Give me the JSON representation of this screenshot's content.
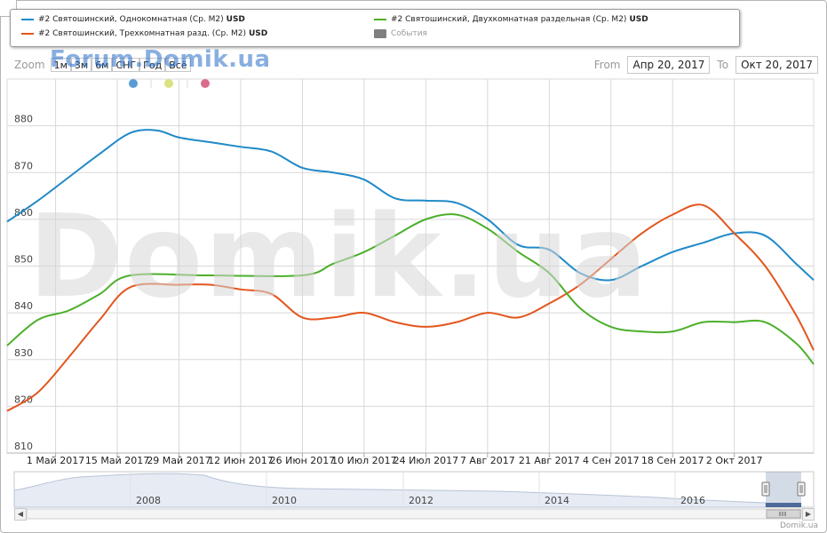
{
  "legend": {
    "items": [
      {
        "label": "#2 Святошинский, Однокомнатная (Ср. М2)",
        "unit": "USD",
        "color": "#1f8ac8"
      },
      {
        "label": "#2 Святошинский, Трехкомнатная разд. (Ср. М2)",
        "unit": "USD",
        "color": "#e2561e"
      },
      {
        "label": "#2 Святошинский, Двухкомнатная раздельная (Ср. М2)",
        "unit": "USD",
        "color": "#4caf2a"
      }
    ],
    "events_label": "События"
  },
  "zoom": {
    "label": "Zoom",
    "buttons": [
      "1м",
      "3м",
      "6м",
      "СНГ",
      "Год",
      "Всё"
    ]
  },
  "range": {
    "from_label": "From",
    "from_value": "Апр 20, 2017",
    "to_label": "To",
    "to_value": "Окт 20, 2017"
  },
  "watermarks": {
    "top": "Forum.Domik.ua",
    "big": "Domik.ua"
  },
  "source": "Domik.ua",
  "event_markers": [
    {
      "color": "#5b9bd5"
    },
    {
      "color": "#d9e27f"
    },
    {
      "color": "#db6c8c"
    }
  ],
  "navigator": {
    "year_labels": [
      "2008",
      "2010",
      "2012",
      "2014",
      "2016"
    ]
  },
  "chart_data": {
    "type": "line",
    "x_unit": "date",
    "ylim": [
      810,
      890
    ],
    "y_ticks": [
      810,
      820,
      830,
      840,
      850,
      860,
      870,
      880
    ],
    "x_ticks": [
      "1 Май 2017",
      "15 Май 2017",
      "29 Май 2017",
      "12 Июн 2017",
      "26 Июн 2017",
      "10 Июл 2017",
      "24 Июл 2017",
      "7 Авг 2017",
      "21 Авг 2017",
      "4 Сен 2017",
      "18 Сен 2017",
      "2 Окт 2017"
    ],
    "x_tick_dates": [
      "2017-05-01",
      "2017-05-15",
      "2017-05-29",
      "2017-06-12",
      "2017-06-26",
      "2017-07-10",
      "2017-07-24",
      "2017-08-07",
      "2017-08-21",
      "2017-09-04",
      "2017-09-18",
      "2017-10-02"
    ],
    "xlim": [
      "2017-04-20",
      "2017-10-20"
    ],
    "grid": true,
    "series": [
      {
        "name": "#2 Святошинский, Однокомнатная (Ср. М2)",
        "color": "#1f8ac8",
        "points": [
          [
            "2017-04-20",
            859.5
          ],
          [
            "2017-04-27",
            864
          ],
          [
            "2017-05-04",
            869
          ],
          [
            "2017-05-11",
            874
          ],
          [
            "2017-05-18",
            878.5
          ],
          [
            "2017-05-24",
            879
          ],
          [
            "2017-05-29",
            877.5
          ],
          [
            "2017-06-05",
            876.5
          ],
          [
            "2017-06-12",
            875.5
          ],
          [
            "2017-06-19",
            874.5
          ],
          [
            "2017-06-26",
            871
          ],
          [
            "2017-07-03",
            870
          ],
          [
            "2017-07-10",
            868.5
          ],
          [
            "2017-07-17",
            864.5
          ],
          [
            "2017-07-24",
            864
          ],
          [
            "2017-07-31",
            863.5
          ],
          [
            "2017-08-07",
            860
          ],
          [
            "2017-08-14",
            854.5
          ],
          [
            "2017-08-21",
            853.5
          ],
          [
            "2017-08-28",
            848.5
          ],
          [
            "2017-09-04",
            847
          ],
          [
            "2017-09-11",
            850
          ],
          [
            "2017-09-18",
            853
          ],
          [
            "2017-09-25",
            855
          ],
          [
            "2017-10-02",
            857
          ],
          [
            "2017-10-09",
            856.5
          ],
          [
            "2017-10-16",
            850.5
          ],
          [
            "2017-10-20",
            847
          ]
        ]
      },
      {
        "name": "#2 Святошинский, Трехкомнатная разд. (Ср. М2)",
        "color": "#e2561e",
        "points": [
          [
            "2017-04-20",
            819
          ],
          [
            "2017-04-27",
            823
          ],
          [
            "2017-05-04",
            830.5
          ],
          [
            "2017-05-11",
            838.5
          ],
          [
            "2017-05-18",
            845.5
          ],
          [
            "2017-05-29",
            846
          ],
          [
            "2017-06-05",
            846
          ],
          [
            "2017-06-12",
            845
          ],
          [
            "2017-06-19",
            844
          ],
          [
            "2017-06-26",
            839
          ],
          [
            "2017-07-03",
            839
          ],
          [
            "2017-07-10",
            840
          ],
          [
            "2017-07-17",
            838
          ],
          [
            "2017-07-24",
            837
          ],
          [
            "2017-07-31",
            838
          ],
          [
            "2017-08-07",
            840
          ],
          [
            "2017-08-14",
            839
          ],
          [
            "2017-08-21",
            842
          ],
          [
            "2017-08-28",
            846
          ],
          [
            "2017-09-04",
            851.5
          ],
          [
            "2017-09-11",
            857
          ],
          [
            "2017-09-18",
            861
          ],
          [
            "2017-09-25",
            863
          ],
          [
            "2017-10-02",
            857
          ],
          [
            "2017-10-09",
            850
          ],
          [
            "2017-10-16",
            839.5
          ],
          [
            "2017-10-20",
            832
          ]
        ]
      },
      {
        "name": "#2 Святошинский, Двухкомнатная раздельная (Ср. М2)",
        "color": "#4caf2a",
        "points": [
          [
            "2017-04-20",
            833
          ],
          [
            "2017-04-27",
            838.5
          ],
          [
            "2017-05-04",
            840.5
          ],
          [
            "2017-05-11",
            844
          ],
          [
            "2017-05-18",
            848
          ],
          [
            "2017-06-05",
            848
          ],
          [
            "2017-06-26",
            848
          ],
          [
            "2017-07-03",
            850.5
          ],
          [
            "2017-07-10",
            853
          ],
          [
            "2017-07-17",
            856.5
          ],
          [
            "2017-07-24",
            860
          ],
          [
            "2017-07-31",
            861
          ],
          [
            "2017-08-07",
            858
          ],
          [
            "2017-08-14",
            853
          ],
          [
            "2017-08-21",
            848.5
          ],
          [
            "2017-08-28",
            841
          ],
          [
            "2017-09-04",
            837
          ],
          [
            "2017-09-11",
            836
          ],
          [
            "2017-09-18",
            836
          ],
          [
            "2017-09-25",
            838
          ],
          [
            "2017-10-02",
            838
          ],
          [
            "2017-10-09",
            838
          ],
          [
            "2017-10-16",
            833.5
          ],
          [
            "2017-10-20",
            829
          ]
        ]
      }
    ]
  }
}
